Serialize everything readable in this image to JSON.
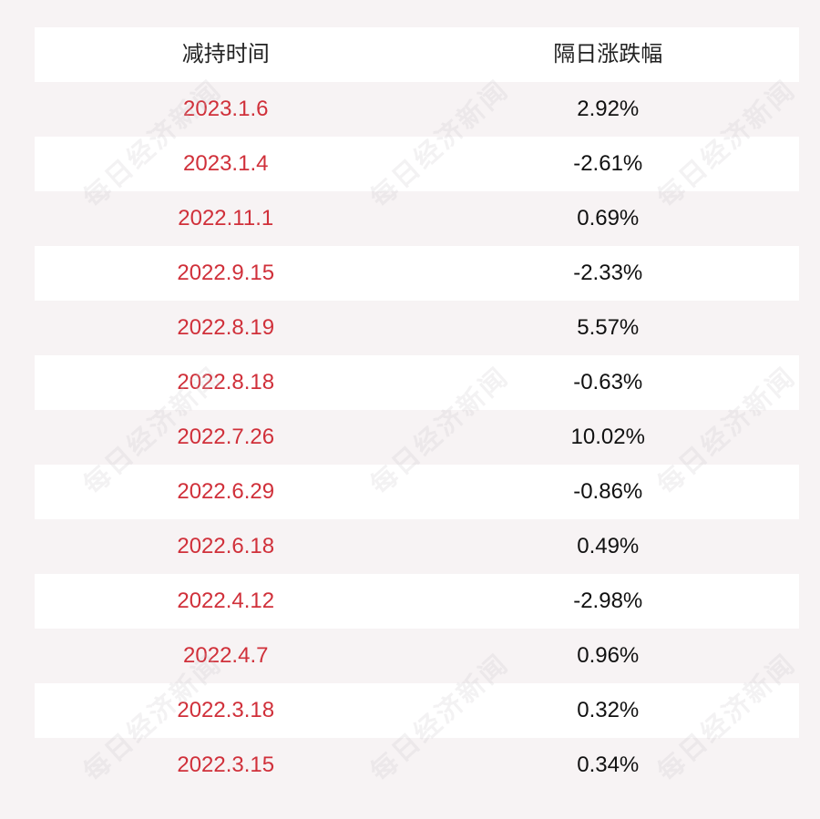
{
  "header": {
    "col1": "减持时间",
    "col2": "隔日涨跌幅"
  },
  "rows": [
    {
      "date": "2023.1.6",
      "change": "2.92%"
    },
    {
      "date": "2023.1.4",
      "change": "-2.61%"
    },
    {
      "date": "2022.11.1",
      "change": "0.69%"
    },
    {
      "date": "2022.9.15",
      "change": "-2.33%"
    },
    {
      "date": "2022.8.19",
      "change": "5.57%"
    },
    {
      "date": "2022.8.18",
      "change": "-0.63%"
    },
    {
      "date": "2022.7.26",
      "change": "10.02%"
    },
    {
      "date": "2022.6.29",
      "change": "-0.86%"
    },
    {
      "date": "2022.6.18",
      "change": "0.49%"
    },
    {
      "date": "2022.4.12",
      "change": "-2.98%"
    },
    {
      "date": "2022.4.7",
      "change": "0.96%"
    },
    {
      "date": "2022.3.18",
      "change": "0.32%"
    },
    {
      "date": "2022.3.15",
      "change": "0.34%"
    }
  ],
  "watermark": "每日经济新闻",
  "colors": {
    "date": "#d0303a",
    "background": "#f7f3f4",
    "row_white": "#ffffff"
  }
}
